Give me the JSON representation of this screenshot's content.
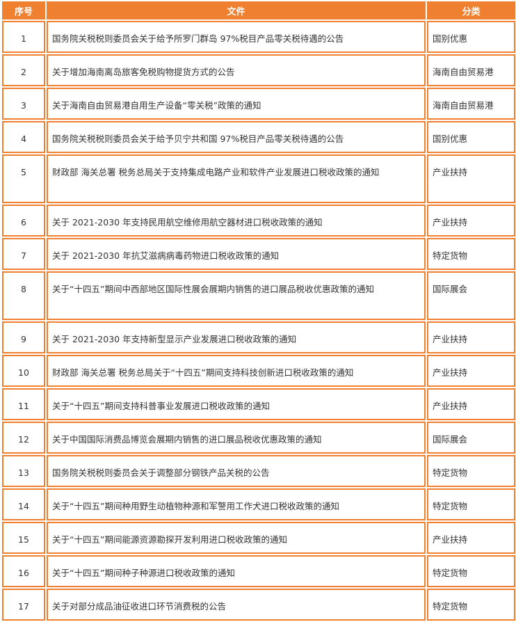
{
  "headers": {
    "index": "序号",
    "document": "文件",
    "category": "分类"
  },
  "rows": [
    {
      "no": "1",
      "doc": "国务院关税税则委员会关于给予所罗门群岛 97%税目产品零关税待遇的公告",
      "cat": "国别优惠"
    },
    {
      "no": "2",
      "doc": "关于增加海南离岛旅客免税购物提货方式的公告",
      "cat": "海南自由贸易港"
    },
    {
      "no": "3",
      "doc": "关于海南自由贸易港自用生产设备“零关税”政策的通知",
      "cat": "海南自由贸易港"
    },
    {
      "no": "4",
      "doc": "国务院关税税则委员会关于给予贝宁共和国 97%税目产品零关税待遇的公告",
      "cat": "国别优惠"
    },
    {
      "no": "5",
      "doc": "财政部 海关总署 税务总局关于支持集成电路产业和软件产业发展进口税收政策的通知",
      "cat": "产业扶持"
    },
    {
      "no": "6",
      "doc": "关于 2021-2030 年支持民用航空维修用航空器材进口税收政策的通知",
      "cat": "产业扶持"
    },
    {
      "no": "7",
      "doc": "关于 2021-2030 年抗艾滋病病毒药物进口税收政策的通知",
      "cat": "特定货物"
    },
    {
      "no": "8",
      "doc": "关于“十四五”期间中西部地区国际性展会展期内销售的进口展品税收优惠政策的通知",
      "cat": "国际展会"
    },
    {
      "no": "9",
      "doc": "关于 2021-2030 年支持新型显示产业发展进口税收政策的通知",
      "cat": "产业扶持"
    },
    {
      "no": "10",
      "doc": "财政部 海关总署 税务总局关于“十四五”期间支持科技创新进口税收政策的通知",
      "cat": "产业扶持"
    },
    {
      "no": "11",
      "doc": "关于“十四五”期间支持科普事业发展进口税收政策的通知",
      "cat": "产业扶持"
    },
    {
      "no": "12",
      "doc": "关于中国国际消费品博览会展期内销售的进口展品税收优惠政策的通知",
      "cat": "国际展会"
    },
    {
      "no": "13",
      "doc": "国务院关税税则委员会关于调整部分钢铁产品关税的公告",
      "cat": "特定货物"
    },
    {
      "no": "14",
      "doc": "关于“十四五”期间种用野生动植物种源和军警用工作犬进口税收政策的通知",
      "cat": "特定货物"
    },
    {
      "no": "15",
      "doc": "关于“十四五”期间能源资源勘探开发利用进口税收政策的通知",
      "cat": "产业扶持"
    },
    {
      "no": "16",
      "doc": "关于“十四五”期间种子种源进口税收政策的通知",
      "cat": "特定货物"
    },
    {
      "no": "17",
      "doc": "关于对部分成品油征收进口环节消费税的公告",
      "cat": "特定货物"
    }
  ]
}
